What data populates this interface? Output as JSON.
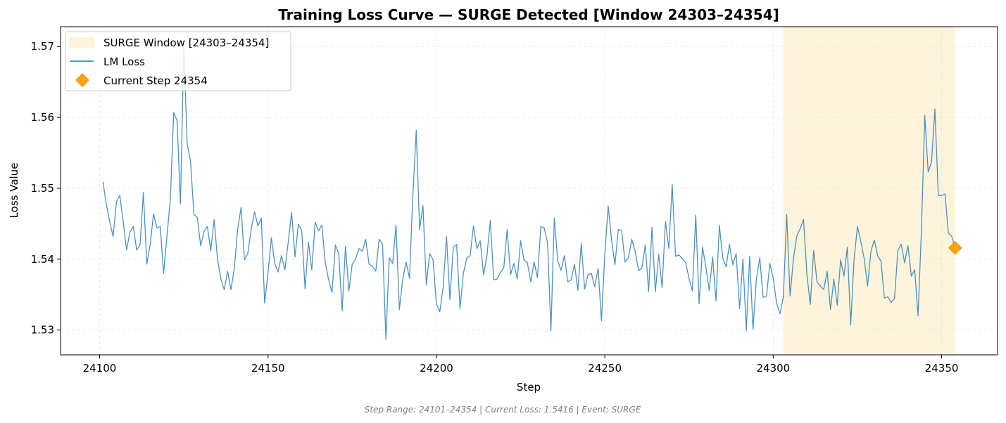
{
  "chart_data": {
    "type": "line",
    "title": "Training Loss Curve — SURGE Detected [Window 24303–24354]",
    "xlabel": "Step",
    "ylabel": "Loss Value",
    "xlim": [
      24088.4,
      24366.6
    ],
    "ylim": [
      1.5265,
      1.5728
    ],
    "x_ticks": [
      24100,
      24150,
      24200,
      24250,
      24300,
      24350
    ],
    "y_ticks": [
      1.53,
      1.54,
      1.55,
      1.56,
      1.57
    ],
    "x_tick_labels": [
      "24100",
      "24150",
      "24200",
      "24250",
      "24300",
      "24350"
    ],
    "y_tick_labels": [
      "1.53",
      "1.54",
      "1.55",
      "1.56",
      "1.57"
    ],
    "grid": true,
    "legend_position": "top-left",
    "colors": {
      "line": "#1f77b4",
      "window_fill": "#fdebc0",
      "marker": "#ffa500",
      "marker_edge": "#e68a00"
    },
    "window": {
      "label": "SURGE Window [24303–24354]",
      "start": 24303,
      "end": 24354
    },
    "current": {
      "label": "Current Step 24354",
      "x": 24354,
      "y": 1.5416
    },
    "series": [
      {
        "name": "LM Loss",
        "x_start": 24101,
        "x_step": 1,
        "values": [
          1.5509,
          1.5477,
          1.5453,
          1.5432,
          1.5481,
          1.549,
          1.5453,
          1.5413,
          1.5438,
          1.5446,
          1.5413,
          1.542,
          1.5494,
          1.5393,
          1.542,
          1.5464,
          1.5444,
          1.5446,
          1.538,
          1.5433,
          1.5484,
          1.5607,
          1.5595,
          1.5478,
          1.57,
          1.5562,
          1.5538,
          1.5463,
          1.5459,
          1.5419,
          1.5439,
          1.5446,
          1.5412,
          1.5456,
          1.54,
          1.5372,
          1.5357,
          1.5383,
          1.5357,
          1.5387,
          1.5443,
          1.5473,
          1.5399,
          1.5408,
          1.5442,
          1.5467,
          1.5447,
          1.5458,
          1.5338,
          1.5381,
          1.543,
          1.5394,
          1.5382,
          1.5405,
          1.5385,
          1.5424,
          1.5466,
          1.5403,
          1.5449,
          1.5441,
          1.5358,
          1.5424,
          1.5385,
          1.5452,
          1.544,
          1.5448,
          1.5395,
          1.5371,
          1.5353,
          1.542,
          1.5408,
          1.5327,
          1.5418,
          1.5355,
          1.5393,
          1.54,
          1.5415,
          1.5411,
          1.5428,
          1.5393,
          1.539,
          1.5383,
          1.5428,
          1.5421,
          1.5287,
          1.5402,
          1.5394,
          1.5448,
          1.5329,
          1.5372,
          1.5396,
          1.5373,
          1.549,
          1.5582,
          1.5442,
          1.5476,
          1.5364,
          1.5408,
          1.5399,
          1.5337,
          1.5326,
          1.5361,
          1.5432,
          1.5343,
          1.5417,
          1.5421,
          1.533,
          1.538,
          1.5401,
          1.5405,
          1.5447,
          1.5415,
          1.5426,
          1.5378,
          1.5405,
          1.5455,
          1.5371,
          1.5372,
          1.5381,
          1.5388,
          1.5442,
          1.5378,
          1.5394,
          1.5372,
          1.5426,
          1.5399,
          1.5395,
          1.5368,
          1.5396,
          1.5374,
          1.5446,
          1.5444,
          1.5423,
          1.5299,
          1.5458,
          1.5398,
          1.5384,
          1.5405,
          1.5368,
          1.5371,
          1.5393,
          1.5356,
          1.5422,
          1.5358,
          1.5378,
          1.538,
          1.5361,
          1.5387,
          1.5313,
          1.5408,
          1.5475,
          1.5427,
          1.5392,
          1.5442,
          1.544,
          1.5396,
          1.5402,
          1.5428,
          1.5411,
          1.5384,
          1.5387,
          1.542,
          1.5354,
          1.5445,
          1.5354,
          1.5407,
          1.536,
          1.5453,
          1.5415,
          1.5506,
          1.5404,
          1.5406,
          1.5401,
          1.5395,
          1.5373,
          1.5355,
          1.5462,
          1.5337,
          1.5417,
          1.5389,
          1.5356,
          1.5403,
          1.5341,
          1.5448,
          1.5402,
          1.5389,
          1.5421,
          1.5392,
          1.5408,
          1.533,
          1.54,
          1.5299,
          1.5404,
          1.5301,
          1.5372,
          1.5402,
          1.5346,
          1.5348,
          1.5394,
          1.5373,
          1.5338,
          1.5323,
          1.5346,
          1.5463,
          1.5348,
          1.5401,
          1.5433,
          1.5443,
          1.5456,
          1.5378,
          1.5336,
          1.5412,
          1.5368,
          1.5362,
          1.5357,
          1.5383,
          1.5329,
          1.5372,
          1.5335,
          1.5399,
          1.5376,
          1.5417,
          1.5307,
          1.54,
          1.5446,
          1.5425,
          1.5401,
          1.5362,
          1.5411,
          1.5427,
          1.5405,
          1.5397,
          1.5345,
          1.5347,
          1.5339,
          1.5344,
          1.5412,
          1.5421,
          1.5395,
          1.5419,
          1.5376,
          1.5385,
          1.532,
          1.5441,
          1.5603,
          1.5523,
          1.5537,
          1.5612,
          1.549,
          1.549,
          1.5492,
          1.5437,
          1.5432,
          1.5416
        ]
      }
    ],
    "footer": "Step Range: 24101–24354 | Current Loss: 1.5416 | Event: SURGE"
  }
}
